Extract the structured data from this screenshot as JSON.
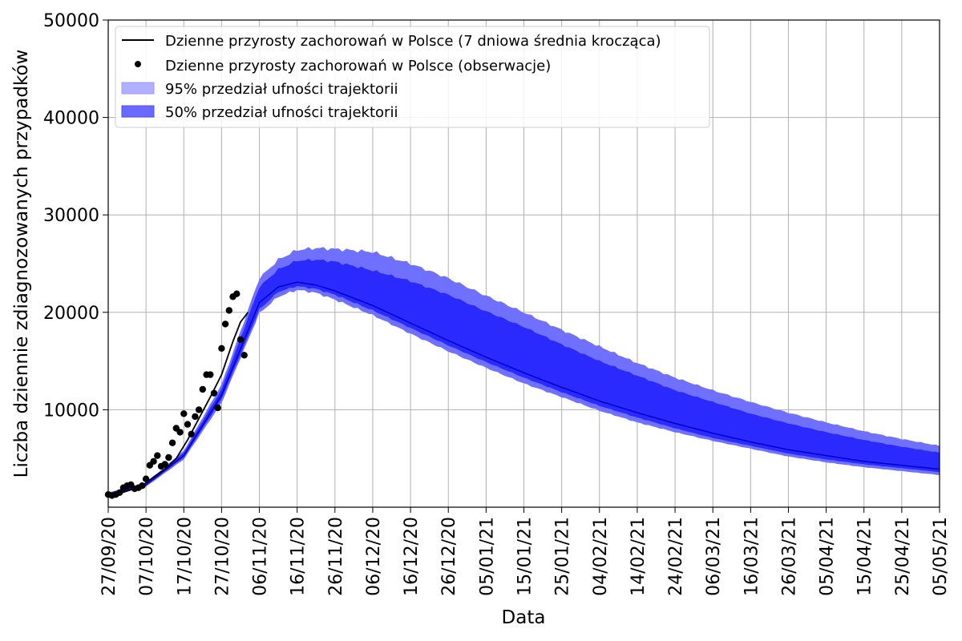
{
  "chart_data": {
    "type": "line",
    "xlabel": "Data",
    "ylabel": "Liczba dziennie zdiagnozowanych przypadków",
    "ylim": [
      0,
      50000
    ],
    "y_ticks": [
      10000,
      20000,
      30000,
      40000,
      50000
    ],
    "xlim": [
      "2020-09-27",
      "2021-05-05"
    ],
    "x_tick_labels": [
      "27/09/20",
      "07/10/20",
      "17/10/20",
      "27/10/20",
      "06/11/20",
      "16/11/20",
      "26/11/20",
      "06/12/20",
      "16/12/20",
      "26/12/20",
      "05/01/21",
      "15/01/21",
      "25/01/21",
      "04/02/21",
      "14/02/21",
      "24/02/21",
      "06/03/21",
      "16/03/21",
      "26/03/21",
      "05/04/21",
      "15/04/21",
      "25/04/21",
      "05/05/21"
    ],
    "grid": true,
    "legend_position": "top-left",
    "legend": [
      "Dzienne przyrosty zachorowań w Polsce (7 dniowa średnia krocząca)",
      "Dzienne przyrosty zachorowań w Polsce (obserwacje)",
      "95% przedział ufności trajektorii",
      "50% przedział ufności trajektorii"
    ],
    "colors": {
      "band95": "#7070ff",
      "band50": "#2a2aff",
      "median": "#0000c8",
      "moving_average": "#000000",
      "observations": "#000000"
    },
    "series": [
      {
        "name": "Dzienne przyrosty zachorowań w Polsce (obserwacje)",
        "kind": "scatter",
        "x": [
          "2020-09-27",
          "2020-09-28",
          "2020-09-29",
          "2020-09-30",
          "2020-10-01",
          "2020-10-02",
          "2020-10-03",
          "2020-10-04",
          "2020-10-05",
          "2020-10-06",
          "2020-10-07",
          "2020-10-08",
          "2020-10-09",
          "2020-10-10",
          "2020-10-11",
          "2020-10-12",
          "2020-10-13",
          "2020-10-14",
          "2020-10-15",
          "2020-10-16",
          "2020-10-17",
          "2020-10-18",
          "2020-10-19",
          "2020-10-20",
          "2020-10-21",
          "2020-10-22",
          "2020-10-23",
          "2020-10-24",
          "2020-10-25",
          "2020-10-26",
          "2020-10-27",
          "2020-10-28",
          "2020-10-29",
          "2020-10-30",
          "2020-10-31",
          "2020-11-01",
          "2020-11-02",
          "2020-11-03"
        ],
        "values": [
          1300,
          1200,
          1300,
          1500,
          2000,
          2200,
          2300,
          1900,
          2000,
          2200,
          2900,
          4300,
          4700,
          5300,
          4200,
          4400,
          5100,
          6600,
          8100,
          7700,
          9600,
          8500,
          7500,
          9300,
          10000,
          12100,
          13600,
          13600,
          11700,
          10200,
          16300,
          18800,
          20200,
          21600,
          21900,
          17200,
          15600,
          null
        ]
      },
      {
        "name": "Dzienne przyrosty zachorowań w Polsce (7 dniowa średnia krocząca)",
        "kind": "line",
        "x": [
          "2020-09-27",
          "2020-09-30",
          "2020-10-03",
          "2020-10-06",
          "2020-10-09",
          "2020-10-12",
          "2020-10-15",
          "2020-10-18",
          "2020-10-21",
          "2020-10-24",
          "2020-10-27",
          "2020-10-30",
          "2020-11-01",
          "2020-11-03"
        ],
        "values": [
          1300,
          1400,
          1800,
          2200,
          3100,
          3900,
          5000,
          6900,
          9100,
          11300,
          13600,
          17000,
          19000,
          20000
        ]
      },
      {
        "name": "median",
        "kind": "line",
        "x": [
          "2020-09-27",
          "2020-10-07",
          "2020-10-17",
          "2020-10-27",
          "2020-11-06",
          "2020-11-11",
          "2020-11-16",
          "2020-11-21",
          "2020-11-26",
          "2020-12-06",
          "2020-12-16",
          "2020-12-26",
          "2021-01-05",
          "2021-01-15",
          "2021-01-25",
          "2021-02-04",
          "2021-02-14",
          "2021-02-24",
          "2021-03-06",
          "2021-03-16",
          "2021-03-26",
          "2021-04-05",
          "2021-04-15",
          "2021-04-25",
          "2021-05-05"
        ],
        "values": [
          1300,
          2300,
          5300,
          11500,
          21000,
          22600,
          23100,
          22800,
          22200,
          20700,
          18900,
          17100,
          15400,
          13800,
          12300,
          10900,
          9700,
          8600,
          7600,
          6700,
          5900,
          5300,
          4700,
          4300,
          3900
        ]
      },
      {
        "name": "50% lower",
        "kind": "band",
        "x": [
          "2020-09-27",
          "2020-10-07",
          "2020-10-17",
          "2020-10-27",
          "2020-11-06",
          "2020-11-11",
          "2020-11-16",
          "2020-11-21",
          "2020-11-26",
          "2020-12-06",
          "2020-12-16",
          "2020-12-26",
          "2021-01-05",
          "2021-01-15",
          "2021-01-25",
          "2021-02-04",
          "2021-02-14",
          "2021-02-24",
          "2021-03-06",
          "2021-03-16",
          "2021-03-26",
          "2021-04-05",
          "2021-04-15",
          "2021-04-25",
          "2021-05-05"
        ],
        "values": [
          1200,
          2200,
          5100,
          11100,
          20300,
          22100,
          22700,
          22400,
          21800,
          20200,
          18400,
          16600,
          14900,
          13300,
          11800,
          10400,
          9200,
          8100,
          7100,
          6300,
          5500,
          4900,
          4400,
          4000,
          3600
        ]
      },
      {
        "name": "50% upper",
        "kind": "band",
        "x": [
          "2020-09-27",
          "2020-10-07",
          "2020-10-17",
          "2020-10-27",
          "2020-11-06",
          "2020-11-11",
          "2020-11-16",
          "2020-11-21",
          "2020-11-26",
          "2020-12-06",
          "2020-12-16",
          "2020-12-26",
          "2021-01-05",
          "2021-01-15",
          "2021-01-25",
          "2021-02-04",
          "2021-02-14",
          "2021-02-24",
          "2021-03-06",
          "2021-03-16",
          "2021-03-26",
          "2021-04-05",
          "2021-04-15",
          "2021-04-25",
          "2021-05-05"
        ],
        "values": [
          1400,
          2400,
          5600,
          12100,
          22600,
          24400,
          25300,
          25400,
          25200,
          24300,
          23200,
          21800,
          20100,
          18500,
          16700,
          15000,
          13500,
          12000,
          10800,
          9600,
          8600,
          7700,
          6900,
          6200,
          5600
        ]
      },
      {
        "name": "95% lower",
        "kind": "band",
        "x": [
          "2020-09-27",
          "2020-10-07",
          "2020-10-17",
          "2020-10-27",
          "2020-11-06",
          "2020-11-11",
          "2020-11-16",
          "2020-11-21",
          "2020-11-26",
          "2020-12-06",
          "2020-12-16",
          "2020-12-26",
          "2021-01-05",
          "2021-01-15",
          "2021-01-25",
          "2021-02-04",
          "2021-02-14",
          "2021-02-24",
          "2021-03-06",
          "2021-03-16",
          "2021-03-26",
          "2021-04-05",
          "2021-04-15",
          "2021-04-25",
          "2021-05-05"
        ],
        "values": [
          1100,
          2100,
          4900,
          10700,
          19900,
          21600,
          22300,
          22000,
          21300,
          19700,
          17800,
          16000,
          14300,
          12700,
          11300,
          9900,
          8700,
          7700,
          6800,
          6000,
          5200,
          4600,
          4100,
          3700,
          3300
        ]
      },
      {
        "name": "95% upper",
        "kind": "band",
        "x": [
          "2020-09-27",
          "2020-10-07",
          "2020-10-17",
          "2020-10-27",
          "2020-11-06",
          "2020-11-11",
          "2020-11-16",
          "2020-11-21",
          "2020-11-26",
          "2020-12-06",
          "2020-12-16",
          "2020-12-26",
          "2021-01-05",
          "2021-01-15",
          "2021-01-25",
          "2021-02-04",
          "2021-02-14",
          "2021-02-24",
          "2021-03-06",
          "2021-03-16",
          "2021-03-26",
          "2021-04-05",
          "2021-04-15",
          "2021-04-25",
          "2021-05-05"
        ],
        "values": [
          1500,
          2500,
          5800,
          12600,
          23500,
          25400,
          26400,
          26600,
          26500,
          26200,
          25000,
          23500,
          21700,
          20000,
          18200,
          16500,
          14800,
          13300,
          12000,
          10800,
          9700,
          8700,
          7800,
          7000,
          6300
        ]
      }
    ]
  }
}
